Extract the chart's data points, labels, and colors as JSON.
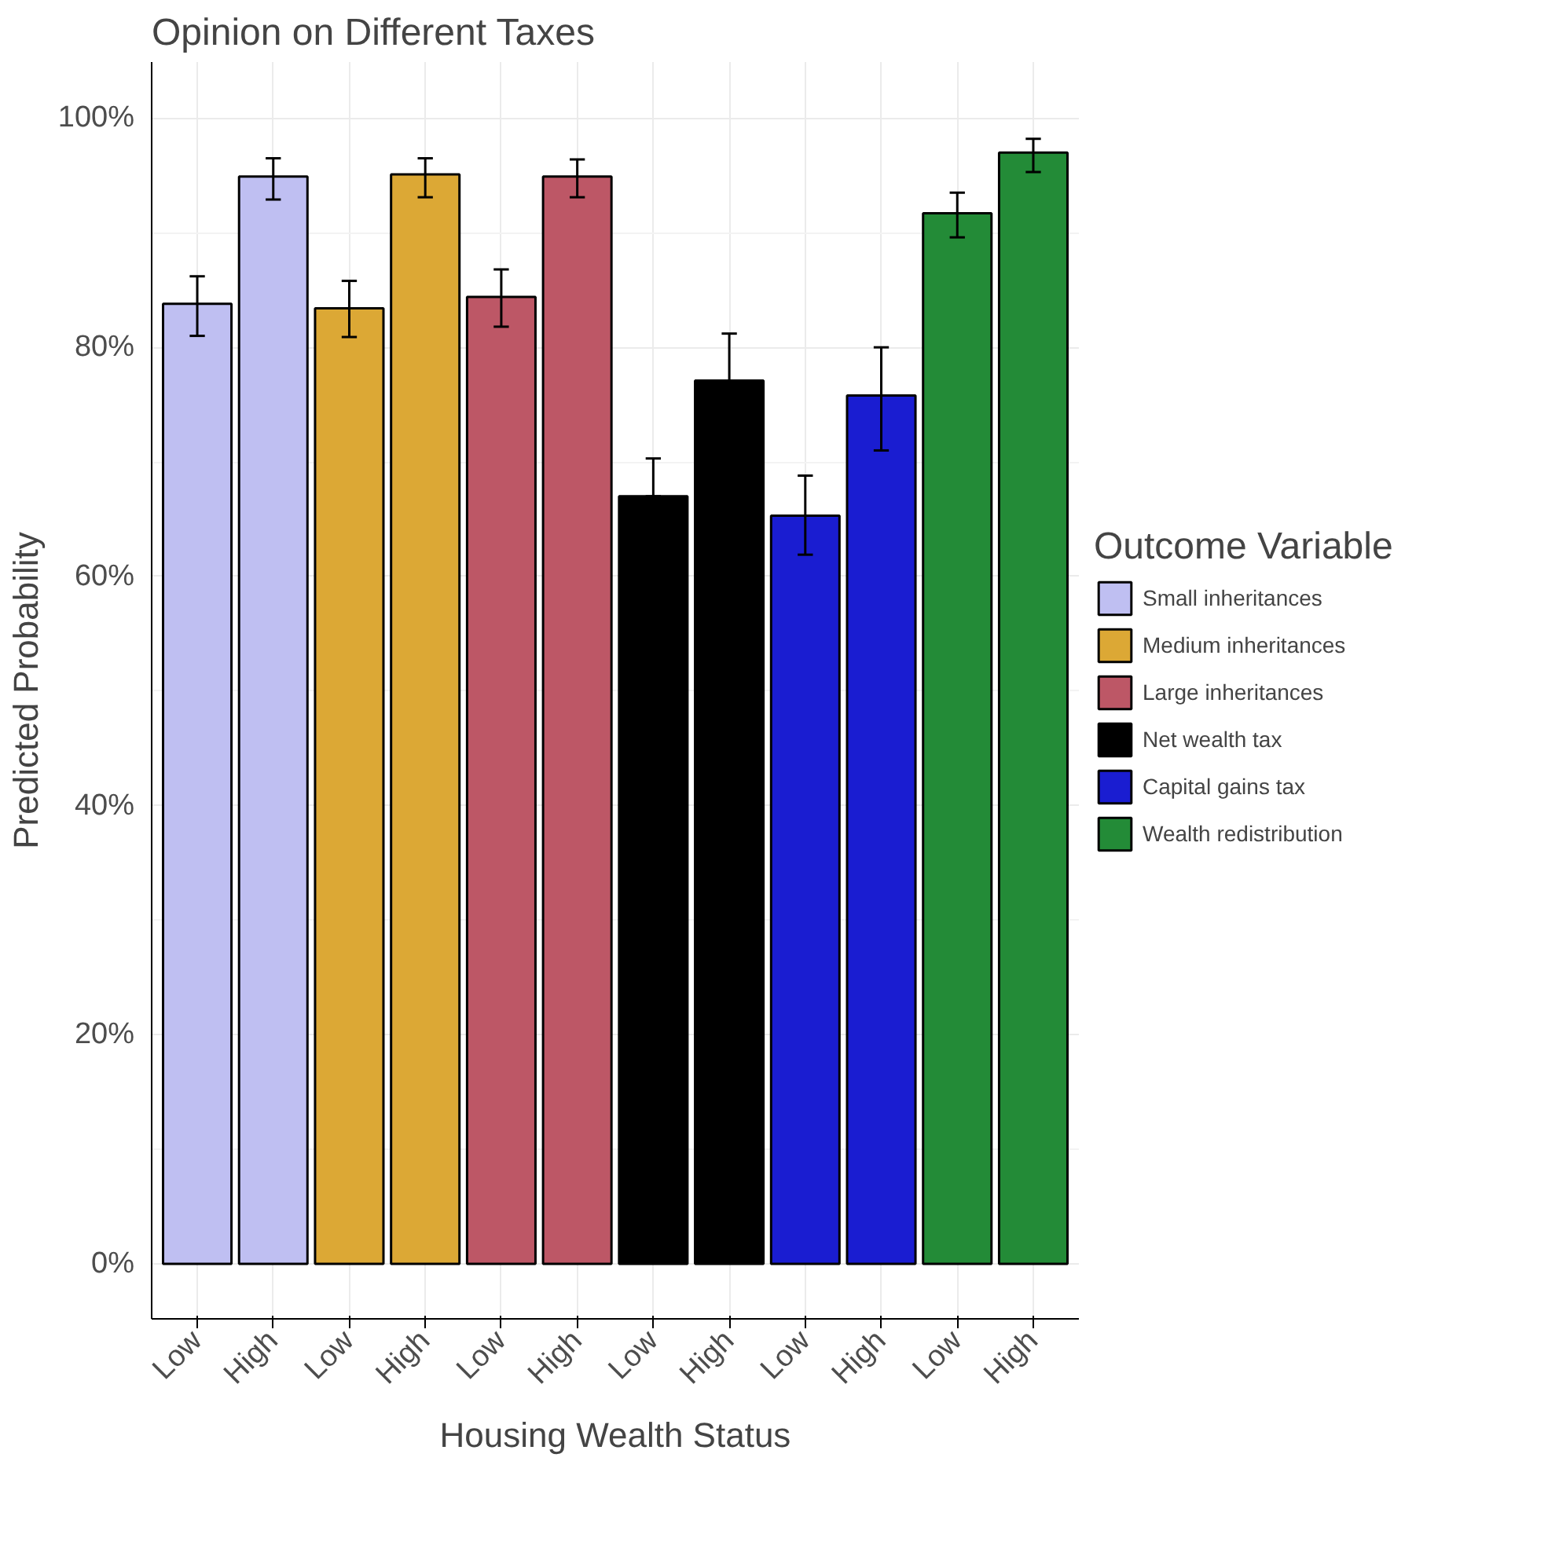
{
  "chart_data": {
    "type": "bar",
    "title": "Opinion on Different Taxes",
    "xlabel": "Housing Wealth Status",
    "ylabel": "Predicted Probability",
    "legend_title": "Outcome Variable",
    "categories": [
      "Low",
      "High",
      "Low",
      "High",
      "Low",
      "High",
      "Low",
      "High",
      "Low",
      "High",
      "Low",
      "High"
    ],
    "series": [
      {
        "name": "Small inheritances",
        "color": "#bfbff2",
        "values": [
          83.8,
          94.9,
          null,
          null,
          null,
          null,
          null,
          null,
          null,
          null,
          null,
          null
        ],
        "errors": [
          [
            81.0,
            86.2
          ],
          [
            92.9,
            96.5
          ],
          null,
          null,
          null,
          null,
          null,
          null,
          null,
          null,
          null,
          null
        ]
      },
      {
        "name": "Medium inheritances",
        "color": "#dca835",
        "values": [
          null,
          null,
          83.4,
          95.1,
          null,
          null,
          null,
          null,
          null,
          null,
          null,
          null
        ],
        "errors": [
          null,
          null,
          [
            80.9,
            85.8
          ],
          [
            93.1,
            96.5
          ],
          null,
          null,
          null,
          null,
          null,
          null,
          null,
          null
        ]
      },
      {
        "name": "Large inheritances",
        "color": "#bd5766",
        "values": [
          null,
          null,
          null,
          null,
          84.4,
          94.9,
          null,
          null,
          null,
          null,
          null,
          null
        ],
        "errors": [
          null,
          null,
          null,
          null,
          [
            81.8,
            86.8
          ],
          [
            93.1,
            96.4
          ],
          null,
          null,
          null,
          null,
          null,
          null
        ]
      },
      {
        "name": "Net wealth tax",
        "color": "#000000",
        "values": [
          null,
          null,
          null,
          null,
          null,
          null,
          67.0,
          77.1,
          null,
          null,
          null,
          null
        ],
        "errors": [
          null,
          null,
          null,
          null,
          null,
          null,
          [
            67.0,
            70.3
          ],
          [
            77.1,
            81.2
          ],
          null,
          null,
          null,
          null
        ]
      },
      {
        "name": "Capital gains tax",
        "color": "#1a1dd1",
        "values": [
          null,
          null,
          null,
          null,
          null,
          null,
          null,
          null,
          65.3,
          75.8,
          null,
          null
        ],
        "errors": [
          null,
          null,
          null,
          null,
          null,
          null,
          null,
          null,
          [
            61.9,
            68.8
          ],
          [
            71.0,
            80.0
          ],
          null,
          null
        ]
      },
      {
        "name": "Wealth redistribution",
        "color": "#238b37",
        "values": [
          null,
          null,
          null,
          null,
          null,
          null,
          null,
          null,
          null,
          null,
          91.7,
          97.0
        ],
        "errors": [
          null,
          null,
          null,
          null,
          null,
          null,
          null,
          null,
          null,
          null,
          [
            89.6,
            93.5
          ],
          [
            95.3,
            98.2
          ]
        ]
      }
    ],
    "ylim": [
      -4.8,
      104.9
    ],
    "yticks": [
      {
        "value": 0,
        "label": "0%"
      },
      {
        "value": 20,
        "label": "20%"
      },
      {
        "value": 40,
        "label": "40%"
      },
      {
        "value": 60,
        "label": "60%"
      },
      {
        "value": 80,
        "label": "80%"
      },
      {
        "value": 100,
        "label": "100%"
      }
    ],
    "grid": true,
    "legend": "right"
  }
}
